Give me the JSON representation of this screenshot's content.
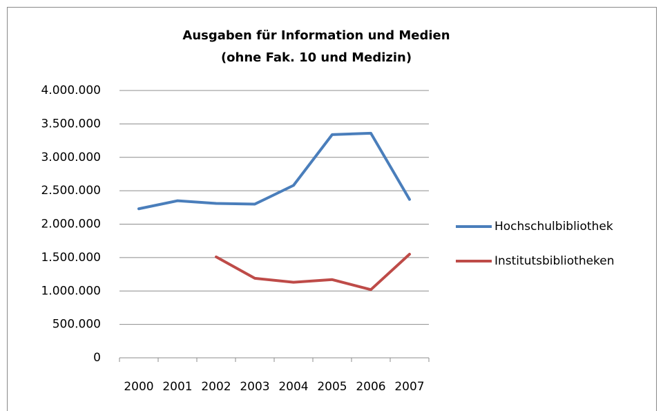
{
  "chart_data": {
    "type": "line",
    "title": "Ausgaben für Information und Medien",
    "subtitle": "(ohne Fak. 10 und Medizin)",
    "categories": [
      "2000",
      "2001",
      "2002",
      "2003",
      "2004",
      "2005",
      "2006",
      "2007"
    ],
    "series": [
      {
        "name": "Hochschulbibliothek",
        "color": "#4a7ebb",
        "values": [
          2230000,
          2350000,
          2310000,
          2300000,
          2580000,
          3340000,
          3360000,
          2370000
        ]
      },
      {
        "name": "Institutsbibliotheken",
        "color": "#be4b48",
        "values": [
          null,
          null,
          1510000,
          1190000,
          1130000,
          1170000,
          1020000,
          1550000
        ]
      }
    ],
    "ylim": [
      0,
      4000000
    ],
    "yticks": [
      0,
      {
        "value": 500000,
        "label": "500.000"
      },
      {
        "value": 1000000,
        "label": "1.000.000"
      },
      {
        "value": 1500000,
        "label": "1.500.000"
      },
      {
        "value": 2000000,
        "label": "2.000.000"
      },
      {
        "value": 2500000,
        "label": "2.500.000"
      },
      {
        "value": 3000000,
        "label": "3.000.000"
      },
      {
        "value": 3500000,
        "label": "3.500.000"
      },
      {
        "value": 4000000,
        "label": "4.000.000"
      }
    ],
    "grid": true,
    "legend": "right"
  }
}
